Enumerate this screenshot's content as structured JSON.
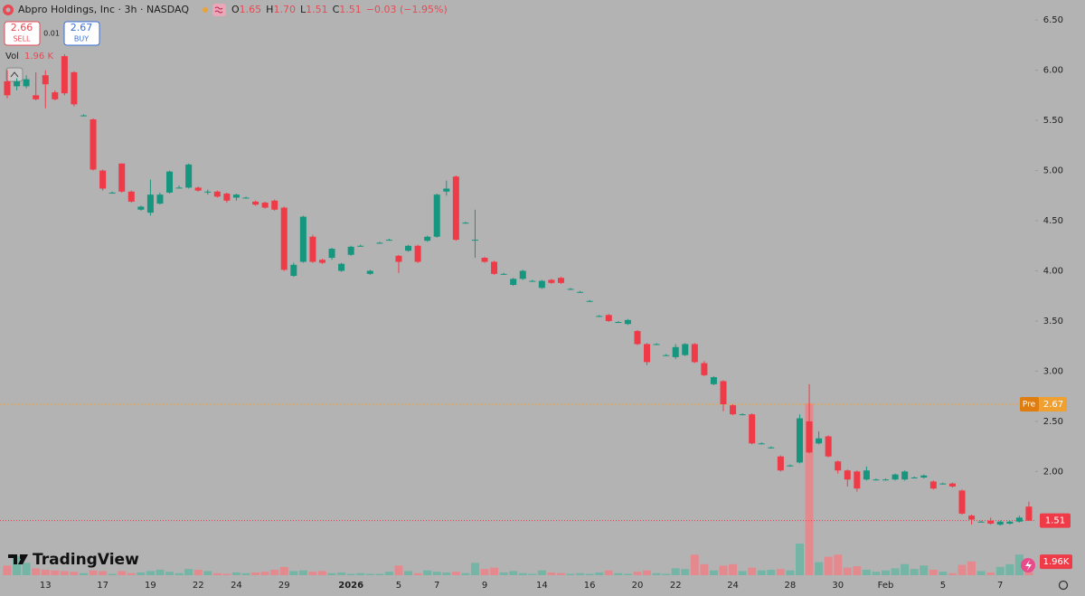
{
  "header": {
    "title": "Abpro Holdings, Inc · 3h · NASDAQ",
    "ohlc": [
      {
        "key": "O",
        "value": "1.65"
      },
      {
        "key": "H",
        "value": "1.70"
      },
      {
        "key": "L",
        "value": "1.51"
      },
      {
        "key": "C",
        "value": "1.51"
      }
    ],
    "change": "−0.03 (−1.95%)"
  },
  "trade": {
    "sell_price": "2.66",
    "sell_label": "SELL",
    "spread": "0.01",
    "buy_price": "2.67",
    "buy_label": "BUY"
  },
  "volume_legend": {
    "label": "Vol",
    "value": "1.96 K"
  },
  "brand": "TradingView",
  "chart_data": {
    "type": "candlestick",
    "categories": [
      null,
      null,
      null,
      null,
      "13",
      null,
      null,
      null,
      null,
      null,
      "17",
      null,
      null,
      null,
      null,
      "19",
      null,
      null,
      null,
      null,
      "22",
      null,
      null,
      null,
      "24",
      null,
      null,
      null,
      null,
      "29",
      null,
      null,
      null,
      null,
      null,
      null,
      "2026",
      null,
      null,
      null,
      null,
      "5",
      null,
      null,
      null,
      "7",
      null,
      null,
      null,
      null,
      "9",
      null,
      null,
      null,
      null,
      null,
      "14",
      null,
      null,
      null,
      null,
      "16",
      null,
      null,
      null,
      null,
      "20",
      null,
      null,
      null,
      "22",
      null,
      null,
      null,
      null,
      null,
      "24",
      null,
      null,
      null,
      null,
      null,
      "28",
      null,
      null,
      null,
      null,
      "30",
      null,
      null,
      null,
      null,
      "Feb",
      null,
      null,
      null,
      null,
      null,
      "5",
      null,
      null,
      null,
      null,
      null,
      "7",
      null,
      null,
      null
    ],
    "open": [
      5.89,
      5.84,
      5.84,
      5.75,
      5.95,
      5.78,
      6.14,
      5.98,
      5.55,
      5.51,
      5.0,
      4.78,
      5.07,
      4.79,
      4.61,
      4.58,
      4.67,
      4.78,
      4.83,
      4.83,
      4.83,
      4.79,
      4.79,
      4.77,
      4.73,
      4.73,
      4.69,
      4.68,
      4.7,
      4.63,
      3.95,
      4.09,
      4.34,
      4.11,
      4.13,
      4.0,
      4.16,
      4.25,
      3.97,
      4.28,
      4.31,
      4.15,
      4.2,
      4.25,
      4.3,
      4.34,
      4.79,
      4.94,
      4.48,
      4.31,
      4.13,
      4.09,
      3.97,
      3.86,
      3.92,
      3.9,
      3.83,
      3.91,
      3.93,
      3.82,
      3.79,
      3.7,
      3.55,
      3.56,
      3.49,
      3.47,
      3.4,
      3.27,
      3.27,
      3.16,
      3.14,
      3.16,
      3.27,
      3.08,
      2.87,
      2.9,
      2.66,
      2.57,
      2.57,
      2.28,
      2.24,
      2.15,
      2.06,
      2.09,
      2.5,
      2.28,
      2.35,
      2.1,
      2.01,
      2.0,
      1.92,
      1.92,
      1.92,
      1.92,
      1.92,
      1.94,
      1.94,
      1.9,
      1.88,
      1.88,
      1.81,
      1.56,
      1.5,
      1.51,
      1.47,
      1.48,
      1.5,
      1.65
    ],
    "high": [
      6.0,
      5.92,
      5.95,
      5.98,
      6.0,
      5.8,
      6.16,
      5.99,
      5.56,
      5.52,
      5.01,
      4.79,
      5.07,
      4.8,
      4.65,
      4.91,
      4.78,
      5.0,
      4.85,
      5.07,
      4.84,
      4.81,
      4.8,
      4.78,
      4.77,
      4.74,
      4.7,
      4.69,
      4.71,
      4.64,
      4.08,
      4.55,
      4.36,
      4.12,
      4.23,
      4.08,
      4.25,
      4.26,
      4.01,
      4.29,
      4.32,
      4.16,
      4.26,
      4.26,
      4.35,
      4.77,
      4.9,
      4.95,
      4.49,
      4.61,
      4.14,
      4.1,
      3.98,
      3.93,
      4.01,
      3.91,
      3.91,
      3.92,
      3.94,
      3.83,
      3.8,
      3.71,
      3.56,
      3.57,
      3.5,
      3.52,
      3.41,
      3.28,
      3.28,
      3.17,
      3.27,
      3.28,
      3.28,
      3.1,
      2.95,
      2.91,
      2.67,
      2.58,
      2.58,
      2.29,
      2.25,
      2.16,
      2.07,
      2.57,
      2.87,
      2.4,
      2.36,
      2.11,
      2.02,
      2.01,
      2.05,
      1.93,
      1.93,
      1.98,
      2.01,
      1.95,
      1.97,
      1.91,
      1.89,
      1.89,
      1.82,
      1.57,
      1.51,
      1.54,
      1.51,
      1.51,
      1.56,
      1.7
    ],
    "low": [
      5.72,
      5.8,
      5.82,
      5.7,
      5.62,
      5.7,
      5.75,
      5.64,
      5.54,
      5.0,
      4.8,
      4.77,
      4.78,
      4.68,
      4.6,
      4.55,
      4.66,
      4.77,
      4.82,
      4.82,
      4.79,
      4.76,
      4.73,
      4.68,
      4.7,
      4.72,
      4.65,
      4.62,
      4.6,
      4.0,
      3.94,
      4.08,
      4.08,
      4.07,
      4.11,
      3.99,
      4.15,
      4.24,
      3.96,
      4.27,
      4.3,
      3.98,
      4.19,
      4.08,
      4.29,
      4.33,
      4.75,
      4.3,
      4.47,
      4.13,
      4.08,
      3.96,
      3.96,
      3.85,
      3.91,
      3.89,
      3.82,
      3.87,
      3.87,
      3.81,
      3.78,
      3.69,
      3.54,
      3.49,
      3.48,
      3.46,
      3.26,
      3.06,
      3.26,
      3.15,
      3.12,
      3.15,
      3.08,
      2.95,
      2.86,
      2.6,
      2.56,
      2.56,
      2.27,
      2.27,
      2.23,
      2.0,
      2.05,
      2.08,
      2.18,
      2.27,
      2.14,
      1.98,
      1.85,
      1.8,
      1.91,
      1.91,
      1.91,
      1.91,
      1.91,
      1.93,
      1.93,
      1.82,
      1.87,
      1.84,
      1.57,
      1.47,
      1.49,
      1.47,
      1.46,
      1.47,
      1.49,
      1.51
    ],
    "close": [
      5.75,
      5.89,
      5.91,
      5.71,
      5.86,
      5.71,
      5.77,
      5.66,
      5.55,
      5.01,
      4.82,
      4.78,
      4.79,
      4.69,
      4.64,
      4.76,
      4.76,
      4.99,
      4.83,
      5.06,
      4.8,
      4.79,
      4.74,
      4.7,
      4.76,
      4.73,
      4.66,
      4.63,
      4.61,
      4.01,
      4.06,
      4.54,
      4.09,
      4.08,
      4.22,
      4.07,
      4.24,
      4.25,
      4.0,
      4.28,
      4.31,
      4.09,
      4.25,
      4.09,
      4.34,
      4.76,
      4.82,
      4.31,
      4.48,
      4.31,
      4.09,
      3.97,
      3.97,
      3.92,
      4.0,
      3.9,
      3.9,
      3.88,
      3.88,
      3.82,
      3.79,
      3.7,
      3.55,
      3.5,
      3.49,
      3.51,
      3.27,
      3.09,
      3.27,
      3.16,
      3.24,
      3.27,
      3.09,
      2.96,
      2.94,
      2.67,
      2.57,
      2.57,
      2.28,
      2.28,
      2.24,
      2.01,
      2.06,
      2.53,
      2.19,
      2.33,
      2.15,
      2.01,
      1.92,
      1.83,
      2.01,
      1.92,
      1.92,
      1.97,
      2.0,
      1.94,
      1.96,
      1.83,
      1.88,
      1.85,
      1.58,
      1.52,
      1.5,
      1.48,
      1.5,
      1.5,
      1.54,
      1.51
    ],
    "volume": [
      1400,
      2800,
      1800,
      1000,
      800,
      700,
      600,
      500,
      300,
      700,
      600,
      200,
      600,
      300,
      400,
      600,
      800,
      500,
      300,
      900,
      800,
      600,
      300,
      200,
      400,
      300,
      400,
      500,
      800,
      1200,
      600,
      700,
      500,
      600,
      300,
      400,
      200,
      300,
      200,
      200,
      500,
      1400,
      600,
      300,
      700,
      500,
      400,
      500,
      300,
      1800,
      900,
      1100,
      400,
      600,
      300,
      200,
      700,
      400,
      300,
      200,
      300,
      200,
      400,
      700,
      300,
      200,
      500,
      700,
      300,
      200,
      1000,
      900,
      3000,
      1600,
      700,
      1400,
      1600,
      600,
      1100,
      700,
      800,
      900,
      700,
      4600,
      25000,
      1900,
      2700,
      3000,
      1100,
      1300,
      800,
      500,
      700,
      1000,
      1600,
      900,
      1400,
      800,
      500,
      300,
      1500,
      2000,
      600,
      400,
      1200,
      1600,
      3000,
      1960
    ],
    "last_volume_label": "1.96K",
    "ylim": [
      0.93,
      6.7
    ],
    "yticks": [
      {
        "value": 2.0,
        "label": "2.00"
      },
      {
        "value": 2.5,
        "label": "2.50"
      },
      {
        "value": 3.0,
        "label": "3.00"
      },
      {
        "value": 3.5,
        "label": "3.50"
      },
      {
        "value": 4.0,
        "label": "4.00"
      },
      {
        "value": 4.5,
        "label": "4.50"
      },
      {
        "value": 5.0,
        "label": "5.00"
      },
      {
        "value": 5.5,
        "label": "5.50"
      },
      {
        "value": 6.0,
        "label": "6.00"
      },
      {
        "value": 6.5,
        "label": "6.50"
      }
    ],
    "pre_market": {
      "label": "Pre",
      "value": 2.67
    },
    "last_price": 1.51,
    "up_color": "#16967e",
    "down_color": "#ef3a48",
    "volume_up_color": "#74b5a6",
    "volume_down_color": "#e48a8f",
    "pre_color": "#f0a030"
  }
}
